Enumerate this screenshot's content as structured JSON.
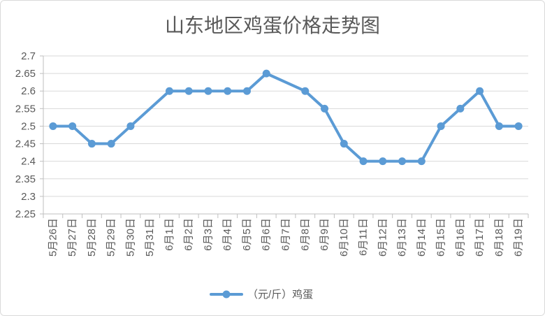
{
  "chart_data": {
    "type": "line",
    "title": "山东地区鸡蛋价格走势图",
    "categories": [
      "5月26日",
      "5月27日",
      "5月28日",
      "5月29日",
      "5月30日",
      "5月31日",
      "6月1日",
      "6月2日",
      "6月3日",
      "6月4日",
      "6月5日",
      "6月6日",
      "6月7日",
      "6月8日",
      "6月9日",
      "6月10日",
      "6月11日",
      "6月12日",
      "6月13日",
      "6月14日",
      "6月15日",
      "6月16日",
      "6月17日",
      "6月18日",
      "6月19日"
    ],
    "series": [
      {
        "name": "（元/斤）鸡蛋",
        "values": [
          2.5,
          2.5,
          2.45,
          2.45,
          2.5,
          null,
          2.6,
          2.6,
          2.6,
          2.6,
          2.6,
          2.65,
          null,
          2.6,
          2.55,
          2.45,
          2.4,
          2.4,
          2.4,
          2.4,
          2.5,
          2.55,
          2.6,
          2.5,
          2.5
        ],
        "color": "#5b9bd5",
        "marker": "circle"
      }
    ],
    "ylim": [
      2.25,
      2.7
    ],
    "yticks": [
      "2.25",
      "2.3",
      "2.35",
      "2.4",
      "2.45",
      "2.5",
      "2.55",
      "2.6",
      "2.65",
      "2.7"
    ],
    "grid": true,
    "legend_position": "bottom",
    "colors": {
      "text": "#595959",
      "grid": "#d9d9d9",
      "axis": "#bfbfbf",
      "border": "#d9d9d9"
    }
  }
}
